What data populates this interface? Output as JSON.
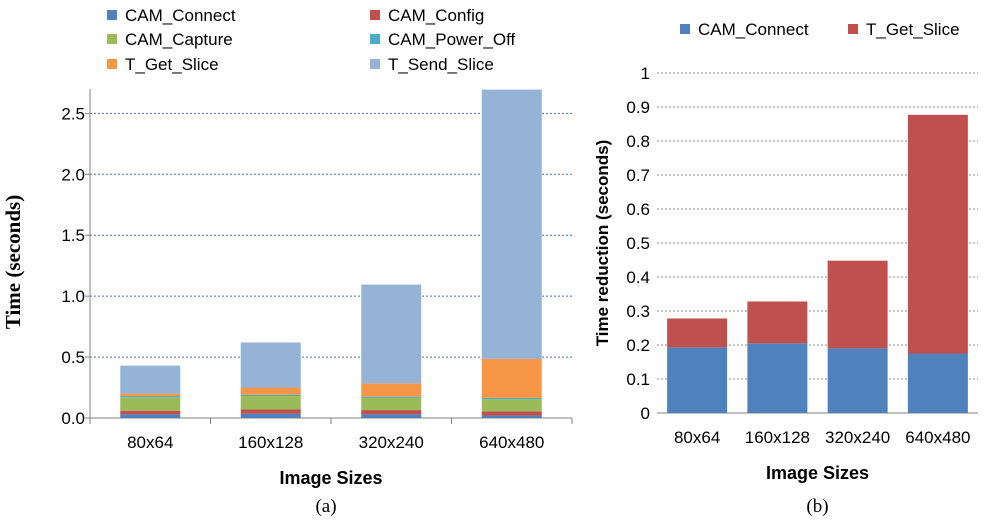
{
  "chart_data": [
    {
      "type": "bar",
      "stacked": true,
      "panel_label": "(a)",
      "title": "",
      "xlabel": "Image Sizes",
      "ylabel": "Time (seconds)",
      "ylim": [
        0,
        2.7
      ],
      "yticks": [
        0.0,
        0.5,
        1.0,
        1.5,
        2.0,
        2.5
      ],
      "ytick_labels": [
        "0.0",
        "0.5",
        "1.0",
        "1.5",
        "2.0",
        "2.5"
      ],
      "grid": true,
      "legend_position": "top",
      "categories": [
        "80x64",
        "160x128",
        "320x240",
        "640x480"
      ],
      "series": [
        {
          "name": "CAM_Connect",
          "color": "#4f81bd",
          "values": [
            0.03,
            0.035,
            0.03,
            0.02
          ]
        },
        {
          "name": "CAM_Config",
          "color": "#c0504d",
          "values": [
            0.03,
            0.035,
            0.035,
            0.035
          ]
        },
        {
          "name": "CAM_Capture",
          "color": "#9bbb59",
          "values": [
            0.11,
            0.11,
            0.1,
            0.1
          ]
        },
        {
          "name": "CAM_Power_Off",
          "color": "#4bacc6",
          "values": [
            0.01,
            0.01,
            0.01,
            0.01
          ]
        },
        {
          "name": "T_Get_Slice",
          "color": "#f79646",
          "values": [
            0.02,
            0.06,
            0.11,
            0.32
          ]
        },
        {
          "name": "T_Send_Slice",
          "color": "#95b3d7",
          "values": [
            0.23,
            0.37,
            0.81,
            2.21
          ]
        }
      ]
    },
    {
      "type": "bar",
      "stacked": true,
      "panel_label": "(b)",
      "title": "",
      "xlabel": "Image Sizes",
      "ylabel": "Time reduction (seconds)",
      "ylim": [
        0,
        1
      ],
      "yticks": [
        0,
        0.1,
        0.2,
        0.3,
        0.4,
        0.5,
        0.6,
        0.7,
        0.8,
        0.9,
        1
      ],
      "ytick_labels": [
        "0",
        "0.1",
        "0.2",
        "0.3",
        "0.4",
        "0.5",
        "0.6",
        "0.7",
        "0.8",
        "0.9",
        "1"
      ],
      "grid": true,
      "legend_position": "top",
      "categories": [
        "80x64",
        "160x128",
        "320x240",
        "640x480"
      ],
      "series": [
        {
          "name": "CAM_Connect",
          "color": "#4f81bd",
          "values": [
            0.193,
            0.205,
            0.19,
            0.175
          ]
        },
        {
          "name": "T_Get_Slice",
          "color": "#c0504d",
          "values": [
            0.085,
            0.123,
            0.258,
            0.702
          ]
        }
      ]
    }
  ]
}
